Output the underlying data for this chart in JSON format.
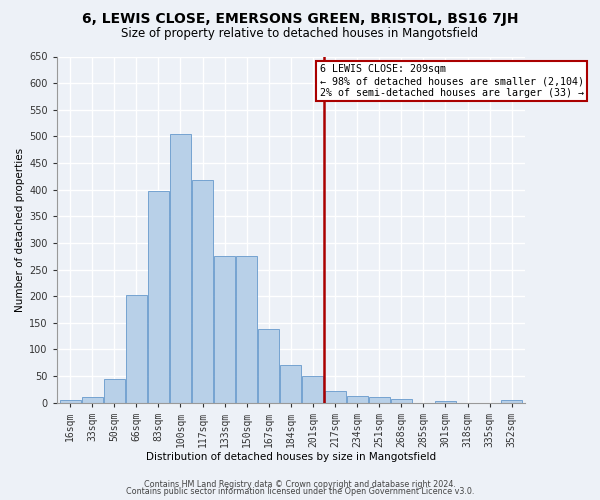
{
  "title1": "6, LEWIS CLOSE, EMERSONS GREEN, BRISTOL, BS16 7JH",
  "title2": "Size of property relative to detached houses in Mangotsfield",
  "xlabel": "Distribution of detached houses by size in Mangotsfield",
  "ylabel": "Number of detached properties",
  "bar_categories": [
    "16sqm",
    "33sqm",
    "50sqm",
    "66sqm",
    "83sqm",
    "100sqm",
    "117sqm",
    "133sqm",
    "150sqm",
    "167sqm",
    "184sqm",
    "201sqm",
    "217sqm",
    "234sqm",
    "251sqm",
    "268sqm",
    "285sqm",
    "301sqm",
    "318sqm",
    "335sqm",
    "352sqm"
  ],
  "bar_values": [
    5,
    10,
    44,
    202,
    398,
    505,
    418,
    275,
    275,
    138,
    70,
    50,
    22,
    12,
    10,
    6,
    0,
    4,
    0,
    0,
    5
  ],
  "bar_color": "#b8d0e8",
  "bar_edge_color": "#6699cc",
  "vline_color": "#aa0000",
  "annotation_text": "6 LEWIS CLOSE: 209sqm\n← 98% of detached houses are smaller (2,104)\n2% of semi-detached houses are larger (33) →",
  "annotation_box_color": "#aa0000",
  "annotation_bg_color": "#ffffff",
  "ylim": [
    0,
    650
  ],
  "yticks": [
    0,
    50,
    100,
    150,
    200,
    250,
    300,
    350,
    400,
    450,
    500,
    550,
    600,
    650
  ],
  "footnote1": "Contains HM Land Registry data © Crown copyright and database right 2024.",
  "footnote2": "Contains public sector information licensed under the Open Government Licence v3.0.",
  "bg_color": "#edf1f7",
  "grid_color": "#ffffff",
  "title1_fontsize": 10,
  "title2_fontsize": 8.5,
  "axis_label_fontsize": 7.5,
  "tick_fontsize": 7,
  "ylabel_fontsize": 7.5
}
